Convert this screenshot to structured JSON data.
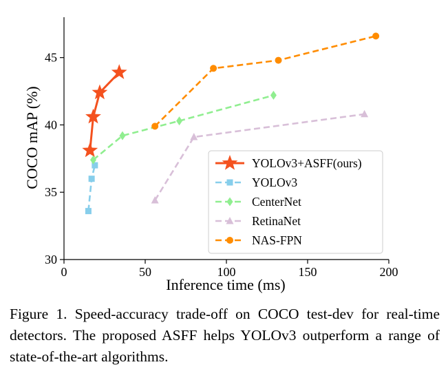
{
  "chart_data": {
    "type": "line",
    "xlabel": "Inference time (ms)",
    "ylabel": "COCO mAP (%)",
    "xlim": [
      0,
      200
    ],
    "ylim": [
      30,
      48
    ],
    "xticks": [
      0,
      50,
      100,
      150,
      200
    ],
    "yticks": [
      30,
      35,
      40,
      45
    ],
    "grid": false,
    "legend_position": "lower-right",
    "series": [
      {
        "name": "YOLOv3+ASFF(ours)",
        "color": "#f4511e",
        "linestyle": "solid",
        "marker": "star",
        "x": [
          16,
          18,
          22,
          34
        ],
        "y": [
          38.1,
          40.6,
          42.4,
          43.9
        ]
      },
      {
        "name": "YOLOv3",
        "color": "#87ceeb",
        "linestyle": "dashed",
        "marker": "square",
        "x": [
          15,
          17,
          19
        ],
        "y": [
          33.6,
          36.0,
          37.0
        ]
      },
      {
        "name": "CenterNet",
        "color": "#90ee90",
        "linestyle": "dashed",
        "marker": "diamond",
        "x": [
          18,
          36,
          71,
          129
        ],
        "y": [
          37.4,
          39.2,
          40.3,
          42.2
        ]
      },
      {
        "name": "RetinaNet",
        "color": "#d8bfd8",
        "linestyle": "dashed",
        "marker": "triangle",
        "x": [
          56,
          80,
          185
        ],
        "y": [
          34.4,
          39.1,
          40.8
        ]
      },
      {
        "name": "NAS-FPN",
        "color": "#ff8c00",
        "linestyle": "dashed",
        "marker": "circle",
        "x": [
          56,
          92,
          132,
          192
        ],
        "y": [
          39.9,
          44.2,
          44.8,
          46.6
        ]
      }
    ]
  },
  "caption": "Figure 1. Speed-accuracy trade-off on COCO test-dev for real-time detectors. The proposed ASFF helps YOLOv3 outperform a range of state-of-the-art algorithms."
}
